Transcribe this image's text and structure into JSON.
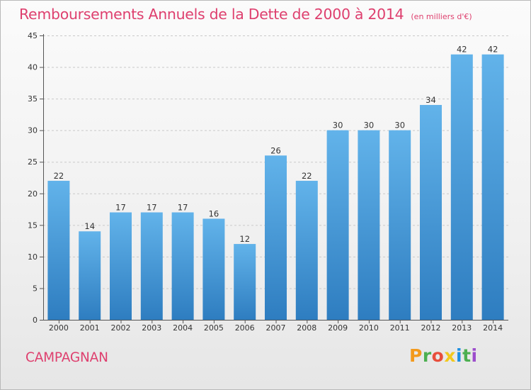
{
  "header": {
    "title": "Remboursements Annuels de la Dette de 2000 à 2014",
    "unit": "(en milliers d'€)"
  },
  "footer": {
    "commune": "CAMPAGNAN",
    "logo_letters": [
      "P",
      "r",
      "o",
      "x",
      "i",
      "t",
      "i"
    ],
    "logo_colors": [
      "#f39a1d",
      "#4caf50",
      "#e84e3c",
      "#f2c81d",
      "#1d8fe0",
      "#4caf50",
      "#9c4dcc"
    ]
  },
  "colors": {
    "title": "#de3f6e",
    "bar_top": "#62b3ea",
    "bar_bottom": "#2e7dc0",
    "grid": "#c9c9c9",
    "axis": "#555555"
  },
  "chart_data": {
    "type": "bar",
    "title": "Remboursements Annuels de la Dette de 2000 à 2014",
    "subtitle": "(en milliers d'€)",
    "xlabel": "",
    "ylabel": "",
    "categories": [
      "2000",
      "2001",
      "2002",
      "2003",
      "2004",
      "2005",
      "2006",
      "2007",
      "2008",
      "2009",
      "2010",
      "2011",
      "2012",
      "2013",
      "2014"
    ],
    "values": [
      22,
      14,
      17,
      17,
      17,
      16,
      12,
      26,
      22,
      30,
      30,
      30,
      34,
      42,
      42
    ],
    "ylim": [
      0,
      45
    ],
    "yticks": [
      0,
      5,
      10,
      15,
      20,
      25,
      30,
      35,
      40,
      45
    ],
    "grid": true,
    "data_labels": true
  }
}
